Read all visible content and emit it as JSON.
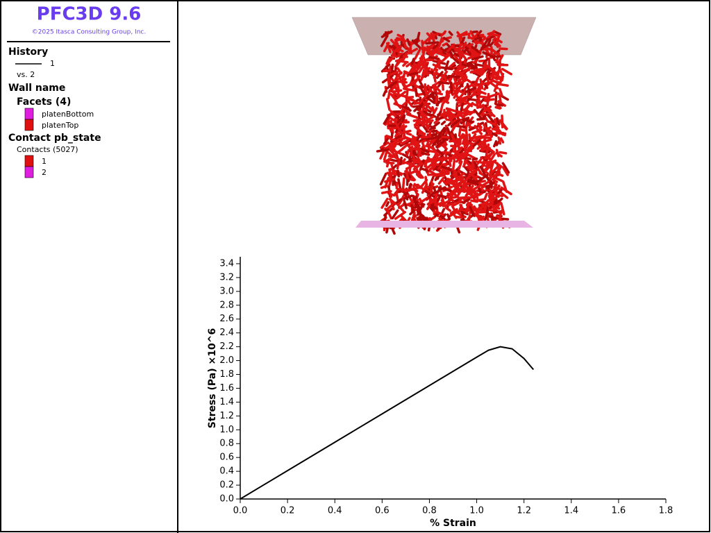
{
  "header": {
    "title": "PFC3D 9.6",
    "copyright": "©2025 Itasca Consulting Group, Inc."
  },
  "legend": {
    "history_heading": "History",
    "history_item": "1",
    "history_vs": "vs. 2",
    "wall_heading": "Wall name",
    "facets_heading": "Facets (4)",
    "facets": [
      {
        "name": "platenBottom",
        "color": "#e01ee0"
      },
      {
        "name": "platenTop",
        "color": "#e01010"
      }
    ],
    "contact_heading": "Contact pb_state",
    "contacts_label": "Contacts (5027)",
    "states": [
      {
        "name": "1",
        "color": "#e01010"
      },
      {
        "name": "2",
        "color": "#e01ee0"
      }
    ]
  },
  "chart_data": {
    "type": "line",
    "xlabel": "% Strain",
    "ylabel": "Stress (Pa) ×10^6",
    "x": [
      0,
      0.2,
      0.4,
      0.6,
      0.8,
      1.0,
      1.05,
      1.1,
      1.15,
      1.2,
      1.24
    ],
    "series": [
      {
        "name": "1",
        "color": "#000000",
        "values": [
          0,
          0.41,
          0.82,
          1.23,
          1.64,
          2.05,
          2.15,
          2.2,
          2.17,
          2.03,
          1.87
        ]
      }
    ],
    "xlim": [
      0,
      1.8
    ],
    "xticks": [
      {
        "value": 0,
        "label": "0.0"
      },
      0.2,
      0.4,
      0.6,
      0.8,
      {
        "value": 1,
        "label": "1.0"
      },
      1.2,
      1.4,
      1.6,
      1.8
    ],
    "ylim": [
      0,
      3.5
    ],
    "yticks": [
      {
        "value": 0,
        "label": "0.0"
      },
      0.2,
      0.4,
      0.6,
      0.8,
      {
        "value": 1,
        "label": "1.0"
      },
      1.2,
      1.4,
      1.6,
      1.8,
      {
        "value": 2,
        "label": "2.0"
      },
      2.2,
      2.4,
      2.6,
      2.8,
      {
        "value": 3,
        "label": "3.0"
      },
      3.2,
      3.4
    ]
  }
}
